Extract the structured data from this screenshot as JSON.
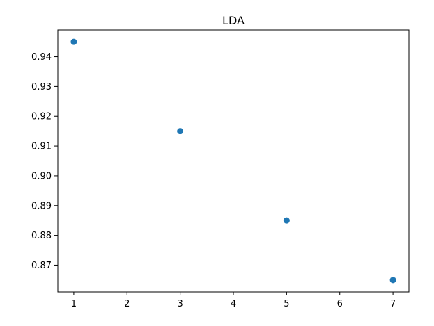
{
  "chart_data": {
    "type": "scatter",
    "title": "LDA",
    "xlabel": "",
    "ylabel": "",
    "x": [
      1,
      3,
      5,
      7
    ],
    "y": [
      0.945,
      0.915,
      0.885,
      0.865
    ],
    "xlim": [
      0.7,
      7.3
    ],
    "ylim": [
      0.861,
      0.949
    ],
    "xticks": [
      1,
      2,
      3,
      4,
      5,
      6,
      7
    ],
    "xtick_labels": [
      "1",
      "2",
      "3",
      "4",
      "5",
      "6",
      "7"
    ],
    "yticks": [
      0.87,
      0.88,
      0.89,
      0.9,
      0.91,
      0.92,
      0.93,
      0.94
    ],
    "ytick_labels": [
      "0.87",
      "0.88",
      "0.89",
      "0.90",
      "0.91",
      "0.92",
      "0.93",
      "0.94"
    ],
    "grid": false,
    "colors": {
      "marker": "#1f77b4",
      "axes": "#000000",
      "background": "#ffffff"
    }
  }
}
